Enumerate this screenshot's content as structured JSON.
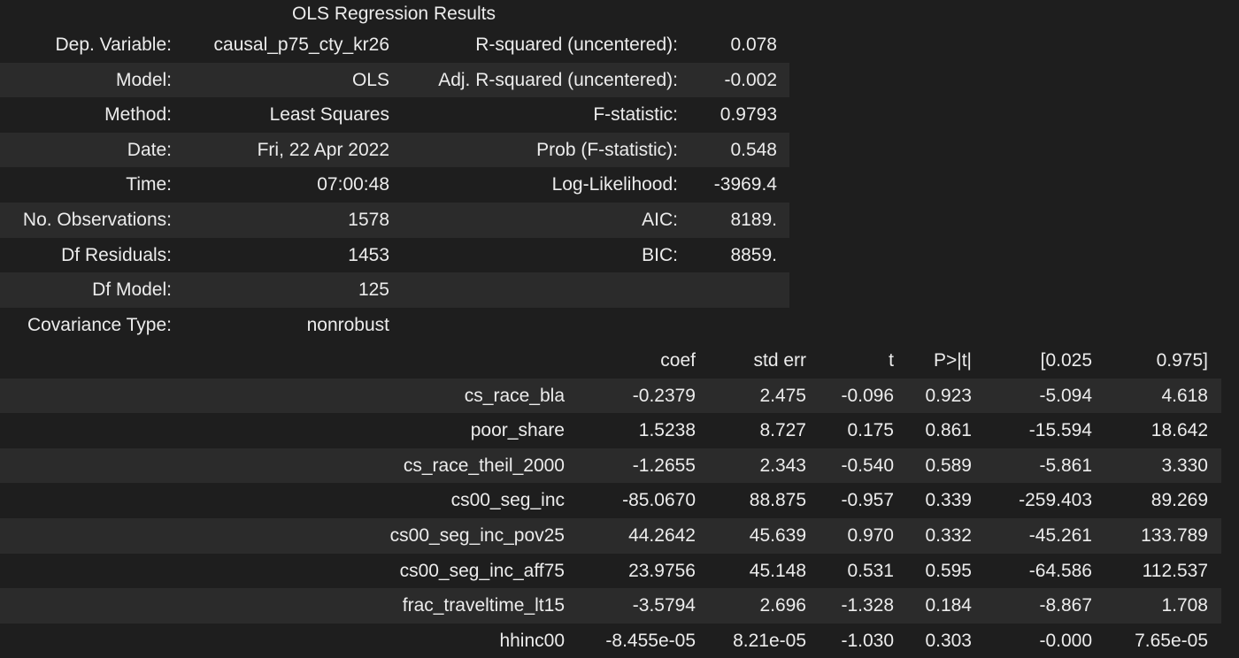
{
  "caption": "OLS Regression Results",
  "summary": [
    {
      "l1": "Dep. Variable:",
      "v1": "causal_p75_cty_kr26",
      "l2": "R-squared (uncentered):",
      "v2": "0.078"
    },
    {
      "l1": "Model:",
      "v1": "OLS",
      "l2": "Adj. R-squared (uncentered):",
      "v2": "-0.002"
    },
    {
      "l1": "Method:",
      "v1": "Least Squares",
      "l2": "F-statistic:",
      "v2": "0.9793"
    },
    {
      "l1": "Date:",
      "v1": "Fri, 22 Apr 2022",
      "l2": "Prob (F-statistic):",
      "v2": "0.548"
    },
    {
      "l1": "Time:",
      "v1": "07:00:48",
      "l2": "Log-Likelihood:",
      "v2": "-3969.4"
    },
    {
      "l1": "No. Observations:",
      "v1": "1578",
      "l2": "AIC:",
      "v2": "8189."
    },
    {
      "l1": "Df Residuals:",
      "v1": "1453",
      "l2": "BIC:",
      "v2": "8859."
    },
    {
      "l1": "Df Model:",
      "v1": "125",
      "l2": "",
      "v2": ""
    },
    {
      "l1": "Covariance Type:",
      "v1": "nonrobust",
      "l2": "",
      "v2": ""
    }
  ],
  "coef_header": {
    "name": "",
    "coef": "coef",
    "std_err": "std err",
    "t": "t",
    "p": "P>|t|",
    "lo": "[0.025",
    "hi": "0.975]"
  },
  "coef_rows": [
    {
      "name": "cs_race_bla",
      "coef": "-0.2379",
      "std_err": "2.475",
      "t": "-0.096",
      "p": "0.923",
      "lo": "-5.094",
      "hi": "4.618"
    },
    {
      "name": "poor_share",
      "coef": "1.5238",
      "std_err": "8.727",
      "t": "0.175",
      "p": "0.861",
      "lo": "-15.594",
      "hi": "18.642"
    },
    {
      "name": "cs_race_theil_2000",
      "coef": "-1.2655",
      "std_err": "2.343",
      "t": "-0.540",
      "p": "0.589",
      "lo": "-5.861",
      "hi": "3.330"
    },
    {
      "name": "cs00_seg_inc",
      "coef": "-85.0670",
      "std_err": "88.875",
      "t": "-0.957",
      "p": "0.339",
      "lo": "-259.403",
      "hi": "89.269"
    },
    {
      "name": "cs00_seg_inc_pov25",
      "coef": "44.2642",
      "std_err": "45.639",
      "t": "0.970",
      "p": "0.332",
      "lo": "-45.261",
      "hi": "133.789"
    },
    {
      "name": "cs00_seg_inc_aff75",
      "coef": "23.9756",
      "std_err": "45.148",
      "t": "0.531",
      "p": "0.595",
      "lo": "-64.586",
      "hi": "112.537"
    },
    {
      "name": "frac_traveltime_lt15",
      "coef": "-3.5794",
      "std_err": "2.696",
      "t": "-1.328",
      "p": "0.184",
      "lo": "-8.867",
      "hi": "1.708"
    },
    {
      "name": "hhinc00",
      "coef": "-8.455e-05",
      "std_err": "8.21e-05",
      "t": "-1.030",
      "p": "0.303",
      "lo": "-0.000",
      "hi": "7.65e-05"
    }
  ],
  "colors": {
    "background": "#1e1e1e",
    "stripe": "#2b2b2b",
    "text": "#ececec"
  }
}
